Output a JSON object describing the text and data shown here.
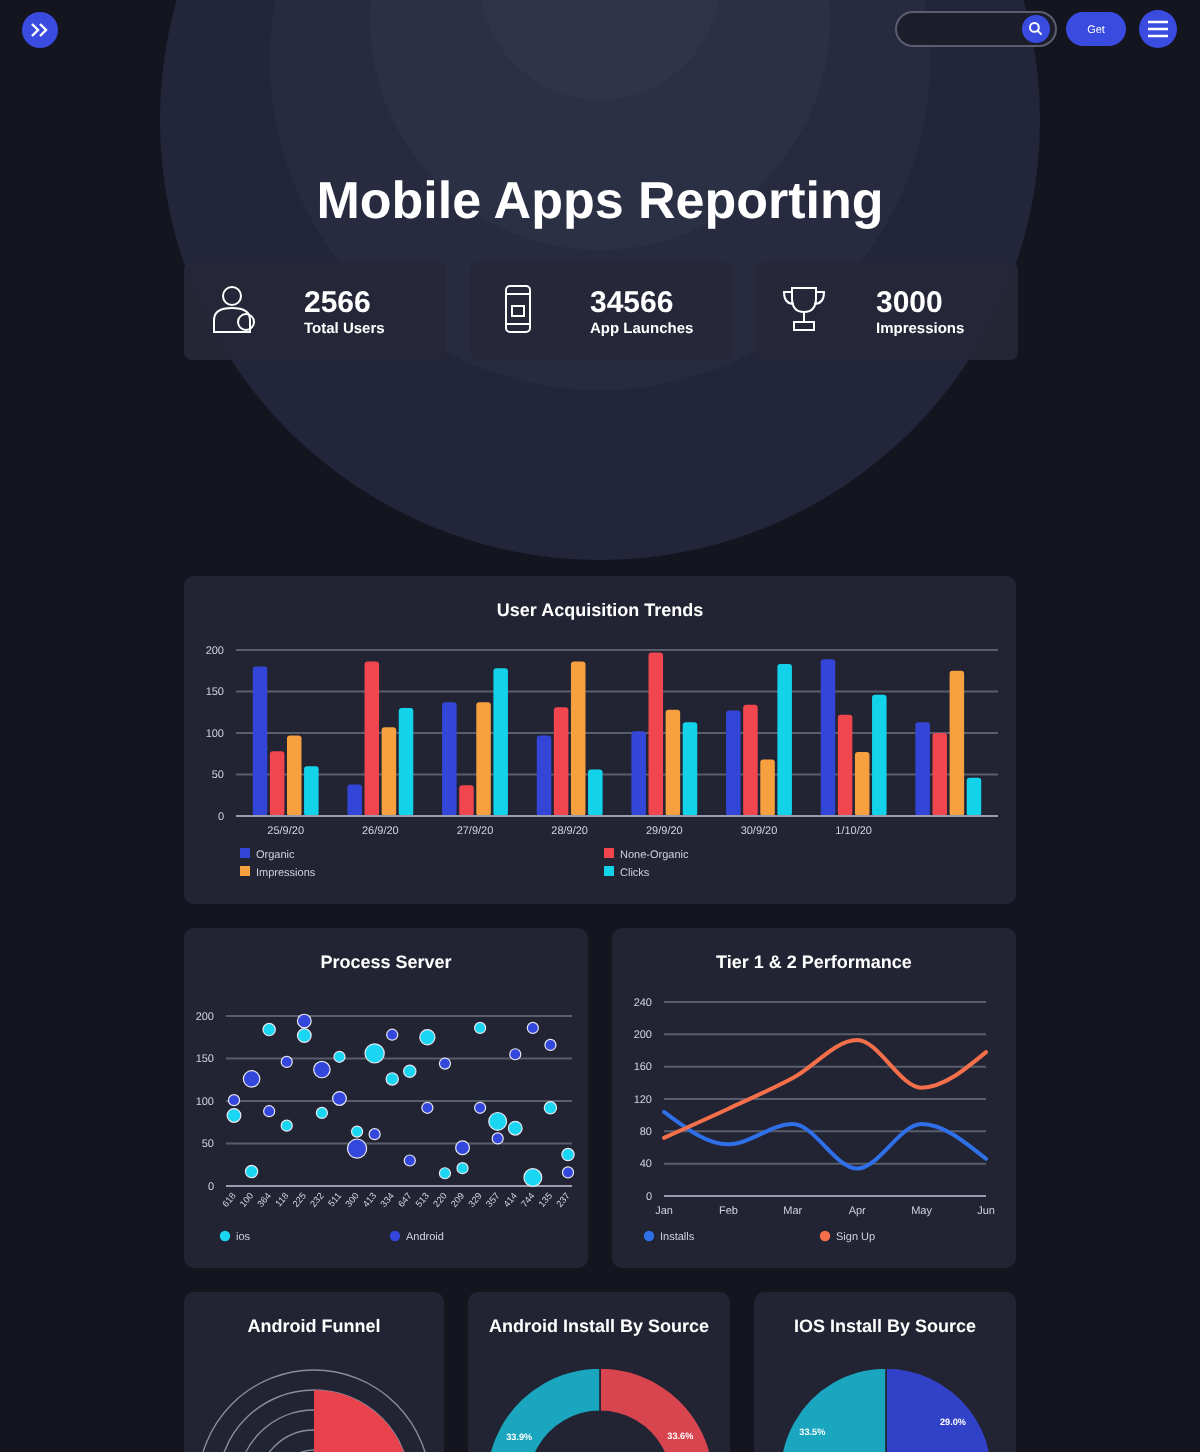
{
  "chart_data": [
    {
      "type": "other",
      "title": "Mobile Apps Reporting",
      "annotations": [
        "Get",
        "2566",
        "Total Users",
        "34566",
        "App Launches",
        "3000",
        "Impressions"
      ]
    },
    {
      "type": "bar",
      "title": "User Acquisition Trends",
      "categories": [
        "25/9/20",
        "26/9/20",
        "27/9/20",
        "28/9/20",
        "29/9/20",
        "30/9/20",
        "1/10/20",
        null
      ],
      "series": [
        {
          "name": "Organic",
          "color": "#3346d8",
          "values": [
            180,
            38,
            137,
            97,
            102,
            127,
            189,
            113
          ]
        },
        {
          "name": "None-Organic",
          "color": "#f2464f",
          "values": [
            78,
            186,
            37,
            131,
            197,
            134,
            122,
            100
          ]
        },
        {
          "name": "Impressions",
          "color": "#f7a040",
          "values": [
            97,
            107,
            137,
            186,
            128,
            68,
            77,
            175
          ]
        },
        {
          "name": "Clicks",
          "color": "#13d3ea",
          "values": [
            60,
            130,
            178,
            56,
            113,
            183,
            146,
            46
          ]
        }
      ],
      "ylim": [
        0,
        200
      ],
      "yticks": [
        0,
        50,
        100,
        150,
        200
      ],
      "grid": "y",
      "legend": "bottom"
    },
    {
      "type": "bubble",
      "title": "Process Server",
      "categories": [
        "618",
        "100",
        "364",
        "118",
        "225",
        "232",
        "511",
        "300",
        "413",
        "334",
        "647",
        "513",
        "220",
        "209",
        "329",
        "357",
        "414",
        "744",
        "135",
        "237"
      ],
      "series": [
        {
          "name": "ios",
          "color": "#1ad6f2",
          "values": [
            83,
            17,
            184,
            71,
            177,
            86,
            152,
            64,
            156,
            126,
            135,
            175,
            15,
            21,
            186,
            76,
            68,
            10,
            92,
            37
          ],
          "sizes": [
            0.51,
            0.41,
            0.41,
            0.33,
            0.51,
            0.33,
            0.33,
            0.33,
            1,
            0.41,
            0.41,
            0.62,
            0.33,
            0.33,
            0.33,
            0.86,
            0.51,
            0.86,
            0.41,
            0.41
          ]
        },
        {
          "name": "Android",
          "color": "#3347dc",
          "values": [
            101,
            126,
            88,
            146,
            194,
            137,
            103,
            44,
            61,
            178,
            30,
            92,
            144,
            45,
            92,
            56,
            155,
            186,
            166,
            16
          ],
          "sizes": [
            0.33,
            0.73,
            0.33,
            0.33,
            0.51,
            0.73,
            0.51,
            1,
            0.33,
            0.33,
            0.33,
            0.33,
            0.33,
            0.51,
            0.33,
            0.33,
            0.33,
            0.33,
            0.33,
            0.33
          ]
        }
      ],
      "ylim": [
        0,
        200
      ],
      "yticks": [
        0,
        50,
        100,
        150,
        200
      ],
      "grid": "y",
      "legend": "bottom"
    },
    {
      "type": "line",
      "title": "Tier 1 & 2 Performance",
      "categories": [
        "Jan",
        "Feb",
        "Mar",
        "Apr",
        "May",
        "Jun"
      ],
      "series": [
        {
          "name": "Installs",
          "color": "#2f6fe8",
          "values": [
            104,
            64,
            89,
            34,
            89,
            46
          ]
        },
        {
          "name": "Sign Up",
          "color": "#f5704a",
          "values": [
            72,
            108,
            146,
            193,
            134,
            178
          ]
        }
      ],
      "ylim": [
        0,
        240
      ],
      "yticks": [
        0,
        40,
        80,
        120,
        160,
        200,
        240
      ],
      "grid": "y",
      "legend": "bottom",
      "marker": "none"
    },
    {
      "type": "other",
      "title": "Android Funnel"
    },
    {
      "type": "donut",
      "title": "Android Install By Source",
      "categories": [
        null,
        null,
        null
      ],
      "values": [
        33.6,
        null,
        33.9
      ],
      "colors": [
        "#d8454f",
        null,
        "#1aa6bf"
      ],
      "value_labels": [
        "33.6%",
        null,
        "33.9%"
      ]
    },
    {
      "type": "pie",
      "title": "IOS Install By Source",
      "categories": [
        null,
        null,
        null
      ],
      "values": [
        29.0,
        null,
        33.5
      ],
      "colors": [
        "#3142c8",
        null,
        "#1aa6bf"
      ],
      "value_labels": [
        "29.0%",
        null,
        "33.5%"
      ]
    }
  ]
}
